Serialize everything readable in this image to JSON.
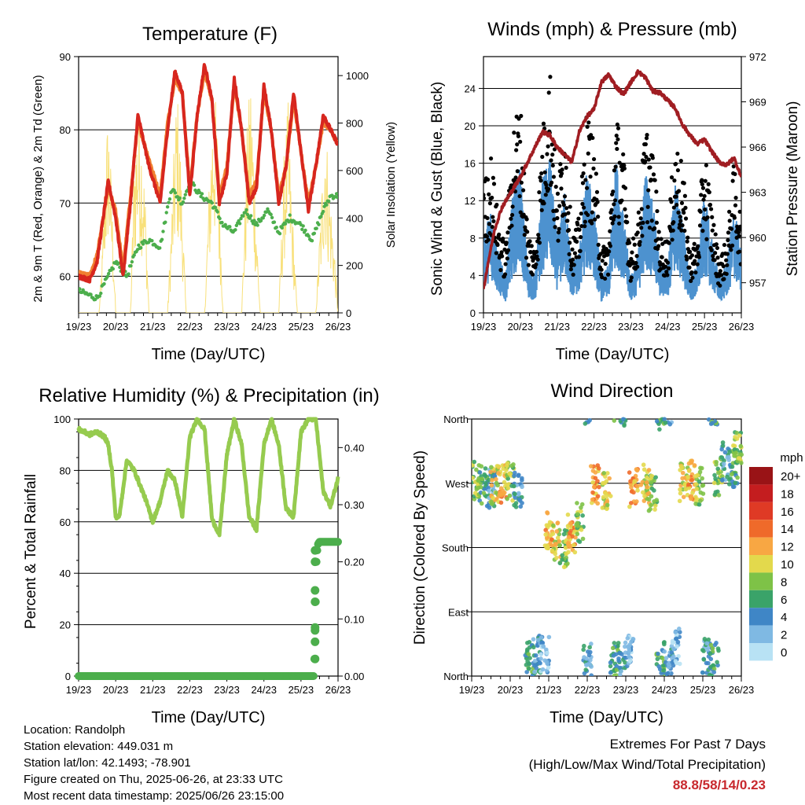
{
  "colors": {
    "temp_2m": "#d7261e",
    "temp_9m": "#f08030",
    "dewpoint": "#4cae4c",
    "solar": "#f8e07a",
    "wind": "#4d92cf",
    "gust": "#000000",
    "pressure": "#a01d22",
    "rh": "#96cb4f",
    "precip": "#4cae4c",
    "extremes": "#c8282d"
  },
  "icons": {
    "no_icons": "none"
  },
  "info": {
    "location": "Location: Randolph",
    "elevation": "Station elevation: 449.031 m",
    "latlon": "Station lat/lon: 42.1493; -78.901",
    "created": "Figure created on Thu, 2025-06-26, at 23:33 UTC",
    "recent": "Most recent data timestamp: 2025/06/26 23:15:00",
    "extremes_title": "Extremes For Past 7 Days",
    "extremes_sub": "(High/Low/Max Wind/Total Precipitation)",
    "extremes_values": "88.8/58/14/0.23"
  },
  "chart_data": [
    {
      "type": "line",
      "title": "Temperature (F)",
      "xlabel": "Time (Day/UTC)",
      "ylabel": "2m & 9m T (Red, Orange) & 2m Td (Green)",
      "ylabel_right": "Solar Insolation (Yellow)",
      "x_ticks": [
        "19/23",
        "20/23",
        "21/23",
        "22/23",
        "23/23",
        "24/23",
        "25/23",
        "26/23"
      ],
      "ylim": [
        55,
        90
      ],
      "y_ticks": [
        60,
        70,
        80,
        90
      ],
      "ylim_right": [
        0,
        1080
      ],
      "y_ticks_right": [
        0,
        200,
        400,
        600,
        800,
        1000
      ],
      "grid": "horizontal",
      "series": [
        {
          "name": "2m T",
          "color_key": "temp_2m",
          "axis": "left",
          "x_days": [
            0,
            0.3,
            0.5,
            0.8,
            1.0,
            1.2,
            1.4,
            1.6,
            1.9,
            2.2,
            2.4,
            2.6,
            2.8,
            3.0,
            3.2,
            3.4,
            3.6,
            3.8,
            4.0,
            4.2,
            4.4,
            4.6,
            4.8,
            5.0,
            5.2,
            5.4,
            5.6,
            5.8,
            6.0,
            6.2,
            6.4,
            6.6,
            6.8,
            7.0
          ],
          "values": [
            60,
            59.5,
            62,
            73,
            68,
            60,
            70,
            82,
            75,
            70,
            80,
            88,
            85,
            71,
            82,
            89,
            84,
            70,
            74,
            87,
            80,
            70,
            72,
            86,
            80,
            70,
            75,
            85,
            77,
            69,
            75,
            82,
            80,
            78
          ]
        },
        {
          "name": "9m T",
          "color_key": "temp_9m",
          "axis": "left",
          "x_days": [
            0,
            0.3,
            0.5,
            0.8,
            1.0,
            1.2,
            1.4,
            1.6,
            1.9,
            2.2,
            2.4,
            2.6,
            2.8,
            3.0,
            3.2,
            3.4,
            3.6,
            3.8,
            4.0,
            4.2,
            4.4,
            4.6,
            4.8,
            5.0,
            5.2,
            5.4,
            5.6,
            5.8,
            6.0,
            6.2,
            6.4,
            6.6,
            6.8,
            7.0
          ],
          "values": [
            60.5,
            60,
            63,
            72,
            69,
            61,
            71,
            81,
            76,
            71,
            81,
            87,
            85,
            72,
            82,
            88,
            84,
            71,
            75,
            86,
            80,
            71,
            73,
            85,
            80,
            71,
            75,
            84,
            77,
            70,
            75,
            81,
            80,
            78
          ]
        },
        {
          "name": "2m Td",
          "color_key": "dewpoint",
          "axis": "left",
          "x_days": [
            0,
            0.5,
            0.8,
            1.0,
            1.3,
            1.6,
            1.9,
            2.2,
            2.5,
            2.8,
            3.0,
            3.3,
            3.6,
            3.9,
            4.2,
            4.5,
            4.8,
            5.1,
            5.4,
            5.7,
            6.0,
            6.3,
            6.6,
            6.8,
            7.0
          ],
          "values": [
            58,
            57,
            60,
            62,
            60,
            64,
            65,
            64,
            72,
            70,
            73,
            71,
            70,
            67,
            66,
            69,
            67,
            69,
            66,
            68,
            67,
            65,
            69,
            71,
            71
          ]
        },
        {
          "name": "Solar",
          "color_key": "solar",
          "axis": "right",
          "x_days": [
            0.55,
            0.65,
            0.7,
            0.8,
            0.9,
            1.0,
            1.2,
            1.4,
            1.5,
            1.6,
            1.7,
            1.8,
            1.9,
            2.2,
            2.4,
            2.55,
            2.65,
            2.75,
            2.9,
            3.2,
            3.4,
            3.55,
            3.65,
            3.75,
            3.9,
            4.2,
            4.4,
            4.55,
            4.65,
            4.75,
            4.9,
            5.2,
            5.4,
            5.55,
            5.65,
            5.75,
            5.9,
            6.2,
            6.4,
            6.55,
            6.65,
            6.75,
            6.9,
            7.0
          ],
          "values": [
            0,
            300,
            600,
            900,
            500,
            0,
            0,
            0,
            700,
            900,
            800,
            500,
            0,
            0,
            0,
            600,
            1000,
            700,
            0,
            0,
            0,
            700,
            1000,
            800,
            0,
            0,
            0,
            800,
            1050,
            600,
            0,
            0,
            0,
            700,
            900,
            500,
            0,
            0,
            0,
            500,
            900,
            600,
            300,
            0
          ]
        }
      ]
    },
    {
      "type": "scatter",
      "title": "Winds (mph) & Pressure (mb)",
      "xlabel": "Time (Day/UTC)",
      "ylabel": "Sonic Wind & Gust (Blue, Black)",
      "ylabel_right": "Station Pressure (Maroon)",
      "x_ticks": [
        "19/23",
        "20/23",
        "21/23",
        "22/23",
        "23/23",
        "24/23",
        "25/23",
        "26/23"
      ],
      "ylim": [
        0,
        27.4
      ],
      "y_ticks": [
        0,
        4,
        8,
        12,
        16,
        20,
        24
      ],
      "ylim_right": [
        955,
        972
      ],
      "y_ticks_right": [
        957,
        960,
        963,
        966,
        969,
        972
      ],
      "grid": "horizontal",
      "series": [
        {
          "name": "Sonic Wind",
          "color_key": "wind",
          "axis": "left",
          "x_days": [
            0,
            0.2,
            0.4,
            0.6,
            0.8,
            1.0,
            1.2,
            1.4,
            1.6,
            1.8,
            2.0,
            2.2,
            2.4,
            2.6,
            2.8,
            3.0,
            3.2,
            3.4,
            3.6,
            3.8,
            4.0,
            4.2,
            4.4,
            4.6,
            4.8,
            5.0,
            5.2,
            5.4,
            5.6,
            5.8,
            6.0,
            6.2,
            6.4,
            6.6,
            6.8,
            7.0
          ],
          "values": [
            6,
            9,
            5,
            3,
            10,
            12,
            4,
            3,
            11,
            13,
            6,
            10,
            4,
            5,
            12,
            9,
            3,
            4,
            13,
            8,
            3,
            5,
            12,
            9,
            4,
            4,
            11,
            8,
            3,
            4,
            10,
            6,
            3,
            4,
            9,
            5
          ]
        },
        {
          "name": "Gust",
          "color_key": "gust",
          "axis": "left",
          "x_days": [
            0,
            0.2,
            0.4,
            0.6,
            0.8,
            1.0,
            1.2,
            1.4,
            1.6,
            1.8,
            2.0,
            2.2,
            2.4,
            2.6,
            2.8,
            3.0,
            3.2,
            3.4,
            3.6,
            3.8,
            4.0,
            4.2,
            4.4,
            4.6,
            4.8,
            5.0,
            5.2,
            5.4,
            5.6,
            5.8,
            6.0,
            6.2,
            6.4,
            6.6,
            6.8,
            7.0
          ],
          "values": [
            12,
            15,
            9,
            6,
            18,
            20,
            8,
            6,
            17,
            24,
            11,
            19,
            7,
            9,
            19,
            16,
            6,
            7,
            19,
            15,
            6,
            9,
            18,
            15,
            7,
            7,
            17,
            14,
            6,
            7,
            16,
            10,
            5,
            7,
            14,
            9
          ]
        },
        {
          "name": "Pressure",
          "color_key": "pressure",
          "axis": "right",
          "x_days": [
            0,
            0.1,
            0.3,
            0.5,
            0.7,
            1.0,
            1.2,
            1.4,
            1.6,
            1.8,
            2.0,
            2.2,
            2.4,
            2.6,
            2.8,
            3.0,
            3.2,
            3.4,
            3.6,
            3.8,
            4.0,
            4.2,
            4.4,
            4.6,
            4.8,
            5.0,
            5.2,
            5.4,
            5.6,
            5.8,
            6.0,
            6.2,
            6.4,
            6.6,
            6.8,
            7.0
          ],
          "values": [
            956.5,
            958,
            960.5,
            962,
            962.8,
            964,
            965,
            966,
            967,
            966.8,
            966,
            965.5,
            965,
            967,
            968,
            968.5,
            970.3,
            970.8,
            970,
            969.5,
            970.3,
            971,
            970.6,
            969.7,
            969.6,
            969.1,
            968.6,
            967.5,
            966.8,
            966.2,
            966.5,
            965.7,
            965,
            964.8,
            965.3,
            964
          ]
        }
      ]
    },
    {
      "type": "line",
      "title": "Relative Humidity (%) & Precipitation (in)",
      "xlabel": "Time (Day/UTC)",
      "ylabel": "Percent & Total Rainfall",
      "x_ticks": [
        "19/23",
        "20/23",
        "21/23",
        "22/23",
        "23/23",
        "24/23",
        "25/23",
        "26/23"
      ],
      "ylim": [
        0,
        100
      ],
      "y_ticks": [
        0,
        20,
        40,
        60,
        80,
        100
      ],
      "ylim_right": [
        0,
        0.45
      ],
      "y_ticks_right": [
        "0.00",
        "0.10",
        "0.20",
        "0.30",
        "0.40"
      ],
      "grid": "horizontal",
      "series": [
        {
          "name": "RH",
          "color_key": "rh",
          "axis": "left",
          "x_days": [
            0,
            0.3,
            0.5,
            0.7,
            0.8,
            0.9,
            1.0,
            1.1,
            1.3,
            1.5,
            1.8,
            2.0,
            2.2,
            2.4,
            2.6,
            2.8,
            3.0,
            3.2,
            3.4,
            3.6,
            3.8,
            4.0,
            4.2,
            4.4,
            4.6,
            4.8,
            5.0,
            5.2,
            5.4,
            5.6,
            5.8,
            6.0,
            6.2,
            6.4,
            6.6,
            6.8,
            7.0
          ],
          "values": [
            96,
            94,
            95,
            93,
            90,
            80,
            62,
            62,
            84,
            80,
            69,
            60,
            68,
            80,
            76,
            62,
            93,
            100,
            96,
            61,
            55,
            86,
            100,
            90,
            62,
            57,
            90,
            100,
            90,
            65,
            62,
            95,
            100,
            100,
            72,
            66,
            77
          ]
        },
        {
          "name": "Precip",
          "color_key": "precip",
          "axis": "right",
          "x_days": [
            0,
            6.35,
            6.36,
            6.38,
            6.4,
            6.42,
            6.45,
            6.5,
            7.0
          ],
          "values": [
            0,
            0,
            0.03,
            0.08,
            0.13,
            0.2,
            0.23,
            0.235,
            0.235
          ]
        }
      ]
    },
    {
      "type": "scatter",
      "title": "Wind Direction",
      "xlabel": "Time (Day/UTC)",
      "ylabel": "Direction (Colored By Speed)",
      "x_ticks": [
        "19/23",
        "20/23",
        "21/23",
        "22/23",
        "23/23",
        "24/23",
        "25/23",
        "26/23"
      ],
      "y_ticks": [
        "North",
        "East",
        "South",
        "West",
        "North"
      ],
      "ylim": [
        0,
        360
      ],
      "grid": "horizontal",
      "legend": {
        "title": "mph",
        "position": "right",
        "levels": [
          "0",
          "2",
          "4",
          "6",
          "8",
          "10",
          "12",
          "14",
          "16",
          "18",
          "20+"
        ],
        "colors": [
          "#b8e2f4",
          "#7fb9e3",
          "#3f86c6",
          "#3aa369",
          "#7ec247",
          "#e3d94c",
          "#f8a743",
          "#ef6a2a",
          "#df3a25",
          "#c41d1f",
          "#991316"
        ]
      },
      "series": [
        {
          "name": "Direction",
          "x_days": [
            0.1,
            0.3,
            0.5,
            0.6,
            0.8,
            1.0,
            1.2,
            1.5,
            1.7,
            1.9,
            2.0,
            2.2,
            2.4,
            2.6,
            2.8,
            3.0,
            3.2,
            3.5,
            3.7,
            3.9,
            4.1,
            4.2,
            4.5,
            4.7,
            4.9,
            5.1,
            5.3,
            5.5,
            5.7,
            5.9,
            6.1,
            6.3,
            6.4,
            6.6,
            6.8,
            6.9
          ],
          "values": [
            275,
            268,
            262,
            268,
            270,
            272,
            258,
            25,
            30,
            28,
            205,
            190,
            180,
            200,
            215,
            20,
            268,
            258,
            25,
            15,
            40,
            263,
            270,
            255,
            10,
            20,
            40,
            270,
            275,
            265,
            25,
            20,
            280,
            300,
            290,
            320
          ],
          "speeds": [
            8,
            6,
            4,
            10,
            12,
            8,
            4,
            6,
            4,
            2,
            12,
            10,
            8,
            12,
            8,
            4,
            12,
            10,
            6,
            4,
            2,
            12,
            10,
            8,
            6,
            4,
            2,
            10,
            12,
            8,
            4,
            6,
            8,
            4,
            6,
            8
          ]
        }
      ]
    }
  ]
}
